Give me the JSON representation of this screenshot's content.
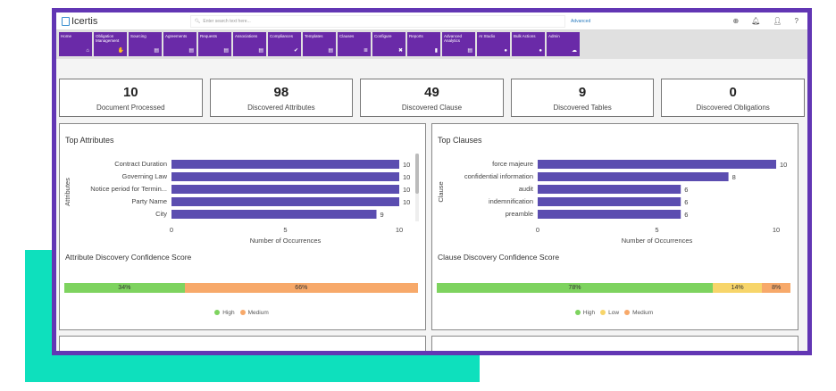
{
  "header": {
    "logo": "Icertis",
    "search_placeholder": "Enter search text here...",
    "advanced": "Advanced"
  },
  "nav": [
    {
      "label": "Home",
      "icon": "home-icon",
      "g": "⌂"
    },
    {
      "label": "Obligation Management",
      "icon": "handshake-icon",
      "g": "✋"
    },
    {
      "label": "Sourcing",
      "icon": "document-icon",
      "g": "▤"
    },
    {
      "label": "Agreements",
      "icon": "document-icon",
      "g": "▤"
    },
    {
      "label": "Requests",
      "icon": "document-icon",
      "g": "▤"
    },
    {
      "label": "Associations",
      "icon": "document-icon",
      "g": "▤"
    },
    {
      "label": "Compliances",
      "icon": "check-icon",
      "g": "✔"
    },
    {
      "label": "Templates",
      "icon": "document-icon",
      "g": "▤"
    },
    {
      "label": "Clauses",
      "icon": "list-icon",
      "g": "≣"
    },
    {
      "label": "Configure",
      "icon": "tools-icon",
      "g": "✖"
    },
    {
      "label": "Reports",
      "icon": "clipboard-icon",
      "g": "▮"
    },
    {
      "label": "Advanced Analytics",
      "icon": "document-icon",
      "g": "▤"
    },
    {
      "label": "AI Studio",
      "icon": "bulb-icon",
      "g": "●"
    },
    {
      "label": "Bulk Actions",
      "icon": "database-icon",
      "g": "●"
    },
    {
      "label": "Admin",
      "icon": "users-icon",
      "g": "☁"
    }
  ],
  "stats": [
    {
      "value": "10",
      "label": "Document Processed"
    },
    {
      "value": "98",
      "label": "Discovered Attributes"
    },
    {
      "value": "49",
      "label": "Discovered Clause"
    },
    {
      "value": "9",
      "label": "Discovered Tables"
    },
    {
      "value": "0",
      "label": "Discovered Obligations"
    }
  ],
  "colors": {
    "bar": "#5b4db0",
    "high": "#7ed35f",
    "medium": "#f7a96a",
    "low": "#f7d56a",
    "frame": "#6236b4",
    "teal": "#0ee0bd"
  },
  "chart_data": [
    {
      "type": "bar",
      "orientation": "horizontal",
      "title": "Top Attributes",
      "xlabel": "Number of Occurrences",
      "ylabel": "Attributes",
      "categories": [
        "Contract Duration",
        "Governing Law",
        "Notice period for Termin...",
        "Party Name",
        "City"
      ],
      "values": [
        10,
        10,
        10,
        10,
        9
      ],
      "xlim": [
        0,
        10
      ],
      "xticks": [
        0,
        5,
        10
      ]
    },
    {
      "type": "bar",
      "orientation": "horizontal",
      "title": "Top Clauses",
      "xlabel": "Number of Occurrences",
      "ylabel": "Clause",
      "categories": [
        "force majeure",
        "confidential information",
        "audit",
        "indemnification",
        "preamble"
      ],
      "values": [
        10,
        8,
        6,
        6,
        6
      ],
      "xlim": [
        0,
        10
      ],
      "xticks": [
        0,
        5,
        10
      ]
    }
  ],
  "confidence": [
    {
      "title": "Attribute Discovery Confidence Score",
      "segments": [
        {
          "name": "High",
          "value": 34,
          "label": "34%",
          "color": "#7ed35f"
        },
        {
          "name": "Medium",
          "value": 66,
          "label": "66%",
          "color": "#f7a96a"
        }
      ],
      "legend": [
        "High",
        "Medium"
      ]
    },
    {
      "title": "Clause Discovery Confidence Score",
      "segments": [
        {
          "name": "High",
          "value": 78,
          "label": "78%",
          "color": "#7ed35f"
        },
        {
          "name": "Low",
          "value": 14,
          "label": "14%",
          "color": "#f7d56a"
        },
        {
          "name": "Medium",
          "value": 8,
          "label": "8%",
          "color": "#f7a96a"
        }
      ],
      "legend": [
        "High",
        "Low",
        "Medium"
      ]
    }
  ]
}
